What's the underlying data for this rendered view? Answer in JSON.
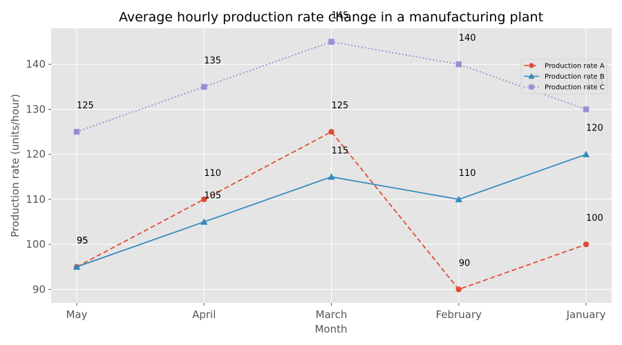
{
  "chart_data": {
    "type": "line",
    "title": "Average hourly production rate change in a manufacturing plant",
    "xlabel": "Month",
    "ylabel": "Production rate (units/hour)",
    "categories": [
      "May",
      "April",
      "March",
      "February",
      "January"
    ],
    "ylim": [
      87,
      148
    ],
    "yticks": [
      90,
      100,
      110,
      120,
      130,
      140
    ],
    "grid": true,
    "legend_position": "upper right",
    "series": [
      {
        "name": "Production rate A",
        "values": [
          95,
          110,
          125,
          90,
          100
        ],
        "color": "#E24A33",
        "marker": "circle",
        "linestyle": "dashed"
      },
      {
        "name": "Production rate B",
        "values": [
          95,
          105,
          115,
          110,
          120
        ],
        "color": "#348ABD",
        "marker": "triangle",
        "linestyle": "solid"
      },
      {
        "name": "Production rate C",
        "values": [
          125,
          135,
          145,
          140,
          130
        ],
        "color": "#988ED5",
        "marker": "square",
        "linestyle": "dotted"
      }
    ]
  }
}
